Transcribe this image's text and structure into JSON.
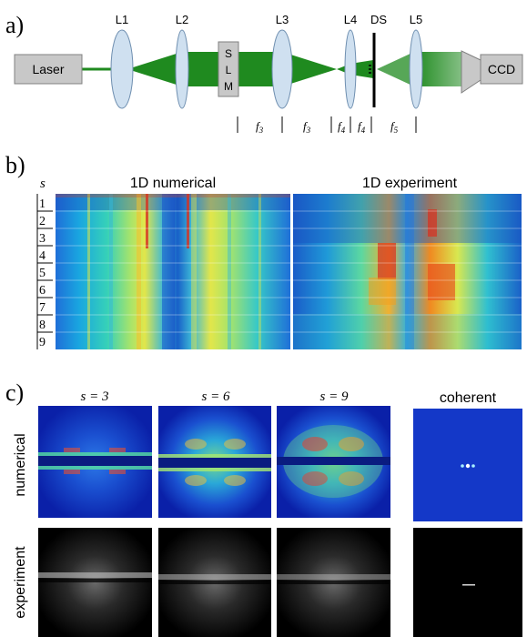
{
  "panel_a": {
    "panel_label": "a)",
    "laser": "Laser",
    "slm_letters": [
      "S",
      "L",
      "M"
    ],
    "ccd": "CCD",
    "lens_labels": [
      "L1",
      "L2",
      "L3",
      "L4",
      "DS",
      "L5"
    ],
    "focal_labels": [
      {
        "base": "f",
        "sub": "3"
      },
      {
        "base": "f",
        "sub": "3"
      },
      {
        "base": "f",
        "sub": "4"
      },
      {
        "base": "f",
        "sub": "4"
      },
      {
        "base": "f",
        "sub": "5"
      }
    ]
  },
  "panel_b": {
    "panel_label": "b)",
    "row_axis_label": "s",
    "title_left": "1D numerical",
    "title_right": "1D experiment",
    "row_labels": [
      "1",
      "2",
      "3",
      "4",
      "5",
      "6",
      "7",
      "8",
      "9"
    ]
  },
  "panel_c": {
    "panel_label": "c)",
    "column_titles": [
      "s = 3",
      "s = 6",
      "s = 9"
    ],
    "coherent_title": "coherent",
    "row_labels": [
      "numerical",
      "experiment"
    ]
  },
  "colors": {
    "beam_green": "#1f8a1f",
    "box_gray": "#c8c8c8",
    "lens_blue": "#cfe0f0",
    "jet_dark": "#00007f"
  }
}
